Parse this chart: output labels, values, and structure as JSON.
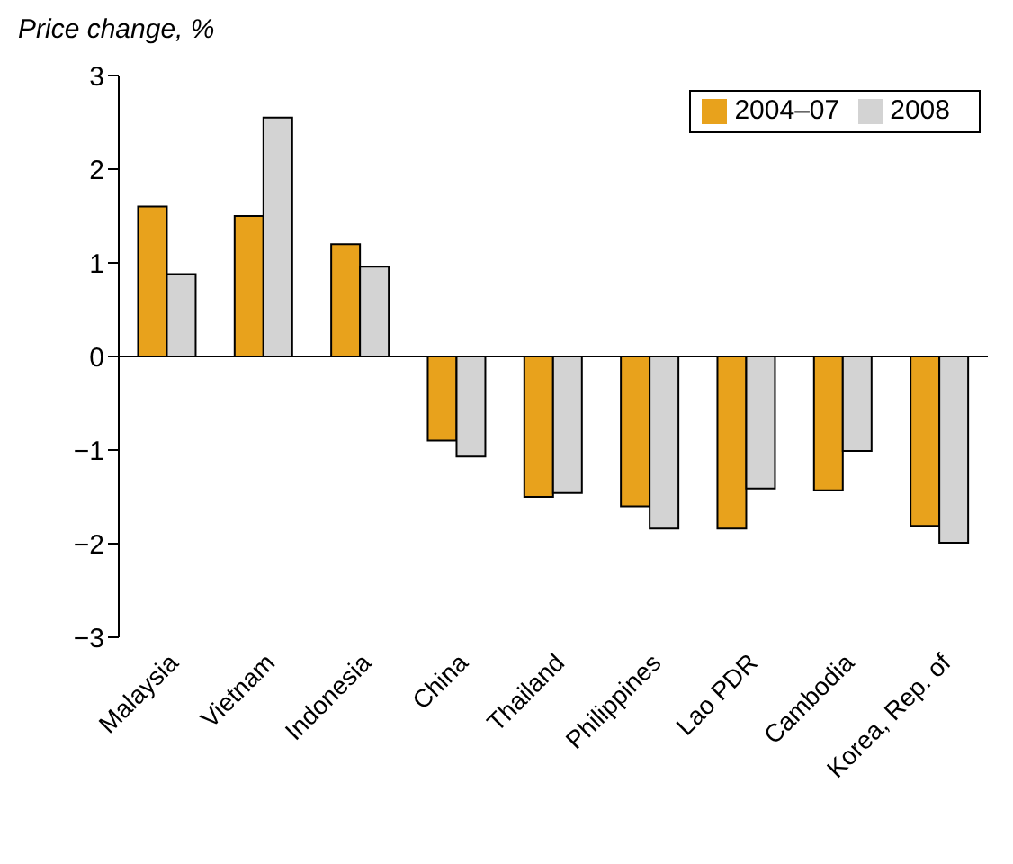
{
  "chart_data": {
    "type": "bar",
    "ylabel": "Price change, %",
    "categories": [
      "Malaysia",
      "Vietnam",
      "Indonesia",
      "China",
      "Thailand",
      "Philippines",
      "Lao PDR",
      "Cambodia",
      "Korea, Rep. of"
    ],
    "series": [
      {
        "name": "2004–07",
        "color": "#e8a21c",
        "values": [
          1.6,
          1.5,
          1.2,
          -0.9,
          -1.5,
          -1.6,
          -1.84,
          -1.43,
          -1.81
        ]
      },
      {
        "name": "2008",
        "color": "#d3d3d3",
        "values": [
          0.88,
          2.55,
          0.96,
          -1.07,
          -1.46,
          -1.84,
          -1.41,
          -1.01,
          -1.99
        ]
      }
    ],
    "ylim": [
      -3,
      3
    ],
    "yticks": [
      -3,
      -2,
      -1,
      0,
      1,
      2,
      3
    ],
    "ref_lines": [
      {
        "axis": "y",
        "value": 0
      }
    ],
    "legend": "top right",
    "grid": false
  }
}
